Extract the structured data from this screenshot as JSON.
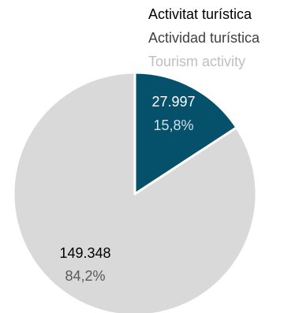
{
  "legend": {
    "title_ca": "Activitat turística",
    "title_es": "Actividad turística",
    "title_en": "Tourism activity"
  },
  "chart_data": {
    "type": "pie",
    "title": "Activitat turística / Actividad turística / Tourism activity",
    "slices": [
      {
        "value": 27997,
        "value_label": "27.997",
        "percent_label": "15,8%",
        "color": "#05506a"
      },
      {
        "value": 149348,
        "value_label": "149.348",
        "percent_label": "84,2%",
        "color": "#d9d9d9"
      }
    ]
  }
}
